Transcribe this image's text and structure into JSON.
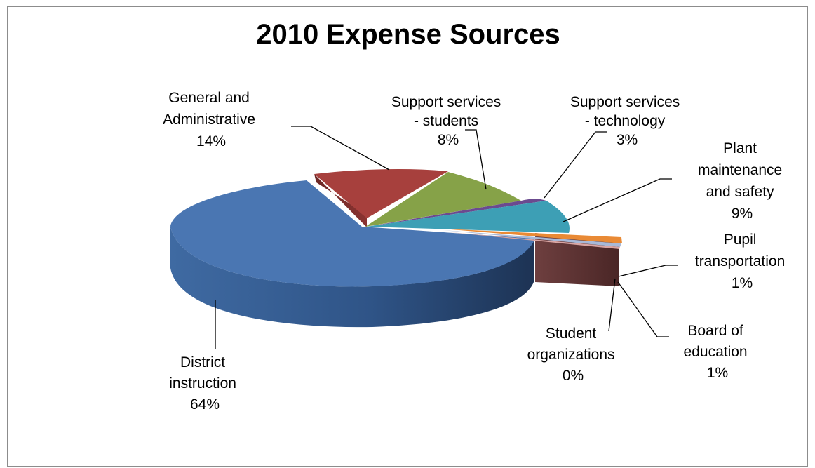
{
  "chart_data": {
    "type": "pie",
    "title": "2010 Expense Sources",
    "slices": [
      {
        "key": "district",
        "label_lines": [
          "District",
          "instruction"
        ],
        "value": 64,
        "pct_label": "64%",
        "color": "#4a76b2"
      },
      {
        "key": "general",
        "label_lines": [
          "General and",
          "Administrative"
        ],
        "value": 14,
        "pct_label": "14%",
        "color": "#a7403d"
      },
      {
        "key": "students",
        "label_lines": [
          "Support services",
          "- students"
        ],
        "value": 8,
        "pct_label": "8%",
        "color": "#86a248"
      },
      {
        "key": "technology",
        "label_lines": [
          "Support services",
          "- technology"
        ],
        "value": 3,
        "pct_label": "3%",
        "color": "#6b4a8f"
      },
      {
        "key": "plant",
        "label_lines": [
          "Plant",
          "maintenance",
          "and safety"
        ],
        "value": 9,
        "pct_label": "9%",
        "color": "#3d9fb5"
      },
      {
        "key": "transport",
        "label_lines": [
          "Pupil",
          "transportation"
        ],
        "value": 1,
        "pct_label": "1%",
        "color": "#e98a35"
      },
      {
        "key": "board",
        "label_lines": [
          "Board of",
          "education"
        ],
        "value": 1,
        "pct_label": "1%",
        "color": "#a8b9d8"
      },
      {
        "key": "orgs",
        "label_lines": [
          "Student",
          "organizations"
        ],
        "value": 0,
        "pct_label": "0%",
        "color": "#d9a5a3"
      }
    ],
    "style": "3d-exploded",
    "legend": "none"
  }
}
